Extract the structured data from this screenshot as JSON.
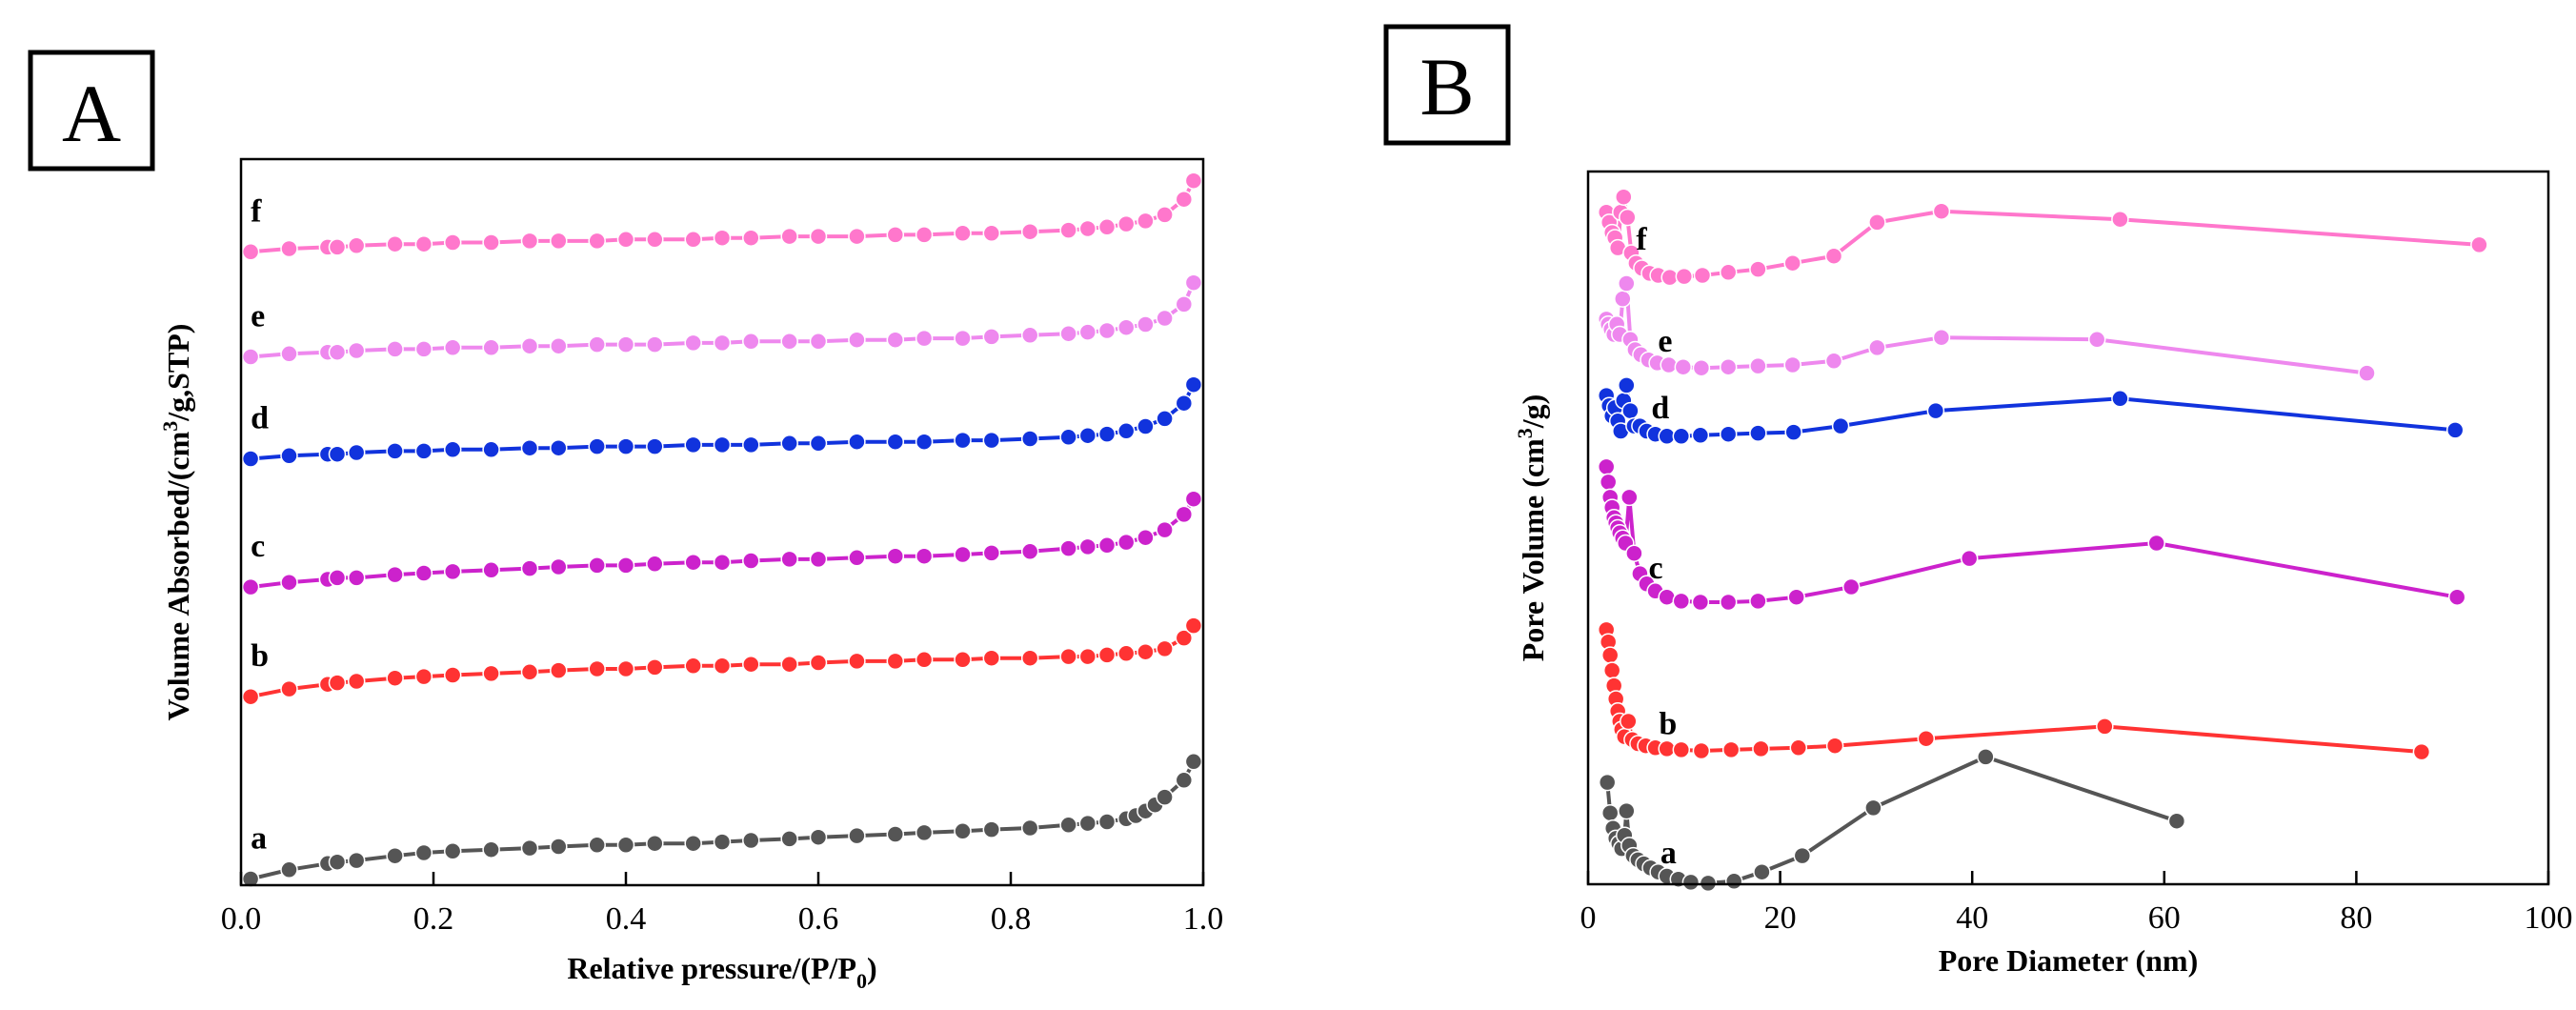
{
  "chart_data": [
    {
      "type": "line",
      "panel": "A",
      "xlabel": "Relative pressure/(P/P",
      "xlabel_sub": "0",
      "xlabel_end": ")",
      "ylabel": "Volume Absorbed/(cm",
      "ylabel_sup": "3",
      "ylabel_end": "/g,STP)",
      "xlim": [
        0.0,
        1.0
      ],
      "xticks": [
        "0.0",
        "0.2",
        "0.4",
        "0.6",
        "0.8",
        "1.0"
      ],
      "yticks_labeled": false,
      "grid": false,
      "legend": "none",
      "series": [
        {
          "name": "a",
          "color": "#555555",
          "x": [
            0.01,
            0.05,
            0.09,
            0.1,
            0.12,
            0.16,
            0.19,
            0.22,
            0.26,
            0.3,
            0.33,
            0.37,
            0.4,
            0.43,
            0.47,
            0.5,
            0.53,
            0.57,
            0.6,
            0.64,
            0.68,
            0.71,
            0.75,
            0.78,
            0.82,
            0.86,
            0.88,
            0.9,
            0.92,
            0.93,
            0.94,
            0.95,
            0.96,
            0.98,
            0.99
          ],
          "y": [
            4,
            10,
            14,
            15,
            16,
            19,
            21,
            22,
            23,
            24,
            25,
            26,
            26,
            27,
            27,
            28,
            29,
            30,
            31,
            32,
            33,
            34,
            35,
            36,
            37,
            39,
            40,
            41,
            43,
            45,
            48,
            52,
            57,
            68,
            80
          ]
        },
        {
          "name": "b",
          "color": "#ff3333",
          "x": [
            0.01,
            0.05,
            0.09,
            0.1,
            0.12,
            0.16,
            0.19,
            0.22,
            0.26,
            0.3,
            0.33,
            0.37,
            0.4,
            0.43,
            0.47,
            0.5,
            0.53,
            0.57,
            0.6,
            0.64,
            0.68,
            0.71,
            0.75,
            0.78,
            0.82,
            0.86,
            0.88,
            0.9,
            0.92,
            0.94,
            0.96,
            0.98,
            0.99
          ],
          "y": [
            122,
            127,
            130,
            131,
            132,
            134,
            135,
            136,
            137,
            138,
            139,
            140,
            140,
            141,
            142,
            142,
            143,
            143,
            144,
            145,
            145,
            146,
            146,
            147,
            147,
            148,
            148,
            149,
            150,
            151,
            153,
            160,
            168
          ]
        },
        {
          "name": "c",
          "color": "#cc22cc",
          "x": [
            0.01,
            0.05,
            0.09,
            0.1,
            0.12,
            0.16,
            0.19,
            0.22,
            0.26,
            0.3,
            0.33,
            0.37,
            0.4,
            0.43,
            0.47,
            0.5,
            0.53,
            0.57,
            0.6,
            0.64,
            0.68,
            0.71,
            0.75,
            0.78,
            0.82,
            0.86,
            0.88,
            0.9,
            0.92,
            0.94,
            0.96,
            0.98,
            0.99
          ],
          "y": [
            193,
            196,
            198,
            199,
            199,
            201,
            202,
            203,
            204,
            205,
            206,
            207,
            207,
            208,
            209,
            209,
            210,
            211,
            211,
            212,
            213,
            213,
            214,
            215,
            216,
            218,
            219,
            220,
            222,
            225,
            230,
            240,
            250
          ]
        },
        {
          "name": "d",
          "color": "#1133dd",
          "x": [
            0.01,
            0.05,
            0.09,
            0.1,
            0.12,
            0.16,
            0.19,
            0.22,
            0.26,
            0.3,
            0.33,
            0.37,
            0.4,
            0.43,
            0.47,
            0.5,
            0.53,
            0.57,
            0.6,
            0.64,
            0.68,
            0.71,
            0.75,
            0.78,
            0.82,
            0.86,
            0.88,
            0.9,
            0.92,
            0.94,
            0.96,
            0.98,
            0.99
          ],
          "y": [
            276,
            278,
            279,
            279,
            280,
            281,
            281,
            282,
            282,
            283,
            283,
            284,
            284,
            284,
            285,
            285,
            285,
            286,
            286,
            287,
            287,
            287,
            288,
            288,
            289,
            290,
            291,
            292,
            294,
            297,
            302,
            312,
            324
          ]
        },
        {
          "name": "e",
          "color": "#ee88ee",
          "x": [
            0.01,
            0.05,
            0.09,
            0.1,
            0.12,
            0.16,
            0.19,
            0.22,
            0.26,
            0.3,
            0.33,
            0.37,
            0.4,
            0.43,
            0.47,
            0.5,
            0.53,
            0.57,
            0.6,
            0.64,
            0.68,
            0.71,
            0.75,
            0.78,
            0.82,
            0.86,
            0.88,
            0.9,
            0.92,
            0.94,
            0.96,
            0.98,
            0.99
          ],
          "y": [
            342,
            344,
            345,
            345,
            346,
            347,
            347,
            348,
            348,
            349,
            349,
            350,
            350,
            350,
            351,
            351,
            352,
            352,
            352,
            353,
            353,
            354,
            354,
            355,
            356,
            357,
            358,
            359,
            361,
            363,
            367,
            376,
            390
          ]
        },
        {
          "name": "f",
          "color": "#ff77cc",
          "x": [
            0.01,
            0.05,
            0.09,
            0.1,
            0.12,
            0.16,
            0.19,
            0.22,
            0.26,
            0.3,
            0.33,
            0.37,
            0.4,
            0.43,
            0.47,
            0.5,
            0.53,
            0.57,
            0.6,
            0.64,
            0.68,
            0.71,
            0.75,
            0.78,
            0.82,
            0.86,
            0.88,
            0.9,
            0.92,
            0.94,
            0.96,
            0.98,
            0.99
          ],
          "y": [
            410,
            412,
            413,
            413,
            414,
            415,
            415,
            416,
            416,
            417,
            417,
            417,
            418,
            418,
            418,
            419,
            419,
            420,
            420,
            420,
            421,
            421,
            422,
            422,
            423,
            424,
            425,
            426,
            428,
            430,
            434,
            444,
            456
          ]
        }
      ]
    },
    {
      "type": "line",
      "panel": "B",
      "xlabel": "Pore Diameter (nm)",
      "ylabel": "Pore Volume (cm",
      "ylabel_sup": "3",
      "ylabel_end": "/g)",
      "xlim": [
        0,
        100
      ],
      "xticks": [
        "0",
        "20",
        "40",
        "60",
        "80",
        "100"
      ],
      "yticks_labeled": false,
      "grid": false,
      "legend": "none",
      "series": [
        {
          "name": "a",
          "color": "#555555",
          "x": [
            2.0,
            2.3,
            2.6,
            2.9,
            3.2,
            3.5,
            3.8,
            4.0,
            4.3,
            4.7,
            5.2,
            5.8,
            6.5,
            7.3,
            8.2,
            9.4,
            10.7,
            12.5,
            15.2,
            18.1,
            22.3,
            29.7,
            41.4,
            61.3
          ],
          "y": [
            100,
            70,
            55,
            45,
            40,
            35,
            48,
            72,
            38,
            28,
            24,
            20,
            16,
            12,
            8,
            5,
            2,
            1,
            3,
            12,
            28,
            75,
            125,
            62
          ]
        },
        {
          "name": "b",
          "color": "#ff3333",
          "x": [
            1.9,
            2.1,
            2.3,
            2.5,
            2.7,
            2.9,
            3.1,
            3.3,
            3.5,
            3.8,
            4.2,
            4.6,
            5.2,
            6.0,
            7.0,
            8.2,
            9.7,
            11.8,
            14.9,
            18.0,
            21.9,
            25.7,
            35.2,
            53.8,
            86.8
          ],
          "y": [
            250,
            238,
            225,
            210,
            195,
            182,
            170,
            160,
            152,
            145,
            160,
            142,
            138,
            136,
            134,
            133,
            132,
            131,
            132,
            133,
            134,
            136,
            143,
            155,
            130
          ]
        },
        {
          "name": "c",
          "color": "#cc22cc",
          "x": [
            1.9,
            2.1,
            2.3,
            2.5,
            2.7,
            2.9,
            3.1,
            3.3,
            3.6,
            3.9,
            4.3,
            4.8,
            5.4,
            6.1,
            7.0,
            8.2,
            9.7,
            11.7,
            14.6,
            17.7,
            21.7,
            27.4,
            39.7,
            59.2,
            90.5
          ],
          "y": [
            410,
            395,
            380,
            370,
            360,
            355,
            350,
            345,
            340,
            335,
            380,
            325,
            305,
            295,
            288,
            282,
            278,
            277,
            277,
            278,
            282,
            292,
            320,
            335,
            282
          ]
        },
        {
          "name": "d",
          "color": "#1133dd",
          "x": [
            1.9,
            2.2,
            2.5,
            2.8,
            3.1,
            3.4,
            3.7,
            4.0,
            4.4,
            4.8,
            5.4,
            6.1,
            7.0,
            8.2,
            9.7,
            11.7,
            14.6,
            17.7,
            21.4,
            26.3,
            36.2,
            55.4,
            90.3
          ],
          "y": [
            480,
            470,
            460,
            468,
            455,
            445,
            475,
            490,
            465,
            450,
            450,
            445,
            442,
            440,
            440,
            441,
            442,
            443,
            444,
            450,
            465,
            477,
            446
          ]
        },
        {
          "name": "e",
          "color": "#ee88ee",
          "x": [
            1.9,
            2.1,
            2.4,
            2.7,
            3.0,
            3.3,
            3.6,
            4.0,
            4.4,
            4.9,
            5.5,
            6.3,
            7.2,
            8.4,
            9.9,
            11.8,
            14.6,
            17.7,
            21.3,
            25.6,
            30.1,
            36.8,
            53.0,
            81.1
          ],
          "y": [
            555,
            550,
            545,
            540,
            550,
            540,
            575,
            590,
            535,
            525,
            520,
            515,
            512,
            510,
            508,
            507,
            508,
            509,
            510,
            514,
            527,
            537,
            535,
            502
          ]
        },
        {
          "name": "f",
          "color": "#ff77cc",
          "x": [
            1.9,
            2.2,
            2.5,
            2.8,
            3.1,
            3.4,
            3.7,
            4.1,
            4.5,
            5.0,
            5.6,
            6.4,
            7.3,
            8.5,
            10.0,
            11.9,
            14.6,
            17.7,
            21.3,
            25.6,
            30.1,
            36.8,
            55.4,
            92.8
          ],
          "y": [
            660,
            650,
            640,
            635,
            625,
            660,
            675,
            655,
            620,
            610,
            605,
            600,
            598,
            596,
            597,
            598,
            601,
            604,
            610,
            617,
            650,
            661,
            653,
            628
          ]
        }
      ]
    }
  ]
}
